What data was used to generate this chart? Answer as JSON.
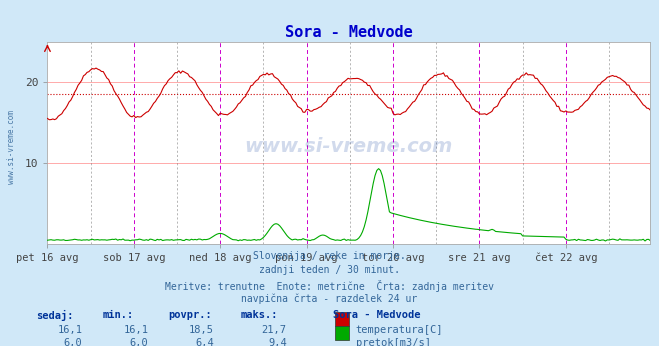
{
  "title": "Sora - Medvode",
  "title_color": "#0000cc",
  "bg_color": "#d0e8f8",
  "plot_bg_color": "#ffffff",
  "watermark_text": "www.si-vreme.com",
  "x_labels": [
    "pet 16 avg",
    "sob 17 avg",
    "ned 18 avg",
    "pon 19 avg",
    "tor 20 avg",
    "sre 21 avg",
    "čet 22 avg"
  ],
  "y_ticks": [
    10,
    20
  ],
  "y_min": 0,
  "y_max": 25,
  "temp_color": "#cc0000",
  "flow_color": "#00aa00",
  "avg_line_color": "#cc0000",
  "avg_line_value": 18.5,
  "grid_color": "#ffaaaa",
  "vline_color_day": "#cc00cc",
  "vline_color_sub": "#555555",
  "footer_lines": [
    "Slovenija / reke in morje.",
    "zadnji teden / 30 minut.",
    "Meritve: trenutne  Enote: metrične  Črta: zadnja meritev",
    "navpična črta - razdelek 24 ur"
  ],
  "legend_station": "Sora - Medvode",
  "legend_items": [
    {
      "label": "temperatura[C]",
      "color": "#cc0000"
    },
    {
      "label": "pretok[m3/s]",
      "color": "#00aa00"
    }
  ],
  "stats_headers": [
    "sedaj:",
    "min.:",
    "povpr.:",
    "maks.:"
  ],
  "stats_temp": [
    "16,1",
    "16,1",
    "18,5",
    "21,7"
  ],
  "stats_flow": [
    "6,0",
    "6,0",
    "6,4",
    "9,4"
  ],
  "n_points": 336,
  "days": 7,
  "points_per_day": 48
}
